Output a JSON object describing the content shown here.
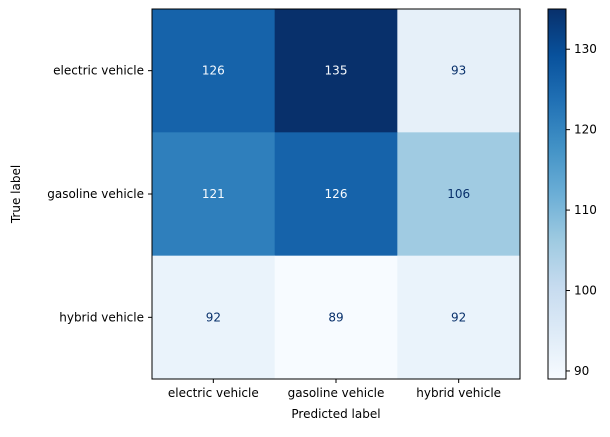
{
  "chart_data": {
    "type": "heatmap",
    "title": "",
    "xlabel": "Predicted label",
    "ylabel": "True label",
    "x_categories": [
      "electric vehicle",
      "gasoline vehicle",
      "hybrid vehicle"
    ],
    "y_categories": [
      "electric vehicle",
      "gasoline vehicle",
      "hybrid vehicle"
    ],
    "values": [
      [
        126,
        135,
        93
      ],
      [
        121,
        126,
        106
      ],
      [
        92,
        89,
        92
      ]
    ],
    "colormap": "Blues",
    "color_range": [
      89,
      135
    ],
    "colorbar_ticks": [
      90,
      100,
      110,
      120,
      130
    ],
    "grid": false
  }
}
